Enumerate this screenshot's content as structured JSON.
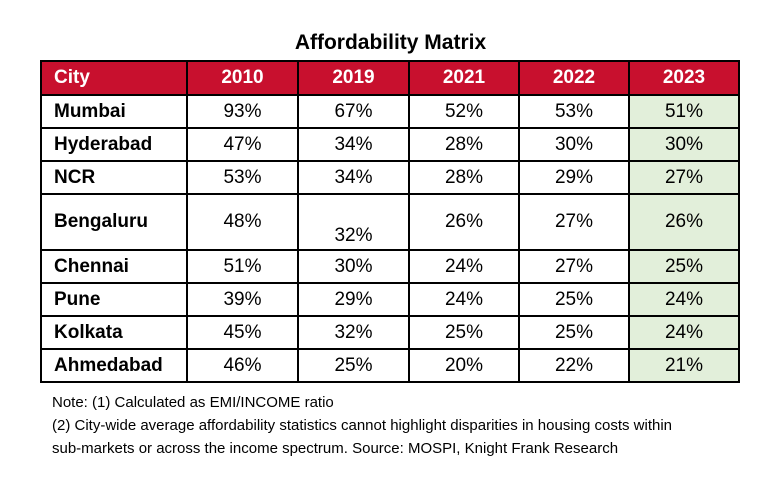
{
  "chart_data": {
    "type": "table",
    "title": "Affordability Matrix",
    "header": [
      "City",
      "2010",
      "2019",
      "2021",
      "2022",
      "2023"
    ],
    "rows": [
      {
        "city": "Mumbai",
        "values": [
          "93%",
          "67%",
          "52%",
          "53%",
          "51%"
        ]
      },
      {
        "city": "Hyderabad",
        "values": [
          "47%",
          "34%",
          "28%",
          "30%",
          "30%"
        ]
      },
      {
        "city": "NCR",
        "values": [
          "53%",
          "34%",
          "28%",
          "29%",
          "27%"
        ]
      },
      {
        "city": "Bengaluru",
        "values": [
          "48%",
          "32%",
          "26%",
          "27%",
          "26%"
        ]
      },
      {
        "city": "Chennai",
        "values": [
          "51%",
          "30%",
          "24%",
          "27%",
          "25%"
        ]
      },
      {
        "city": "Pune",
        "values": [
          "39%",
          "29%",
          "24%",
          "25%",
          "24%"
        ]
      },
      {
        "city": "Kolkata",
        "values": [
          "45%",
          "32%",
          "25%",
          "25%",
          "24%"
        ]
      },
      {
        "city": "Ahmedabad",
        "values": [
          "46%",
          "25%",
          "20%",
          "22%",
          "21%"
        ]
      }
    ],
    "highlight_column": "2023",
    "colors": {
      "header_bg": "#c8102e",
      "header_text": "#ffffff",
      "highlight_bg": "#e2efda"
    }
  },
  "notes": [
    "Note: (1) Calculated as EMI/INCOME ratio",
    "(2) City-wide average affordability statistics cannot highlight disparities in housing costs within",
    "sub-markets or across the income spectrum. Source: MOSPI, Knight Frank Research"
  ]
}
